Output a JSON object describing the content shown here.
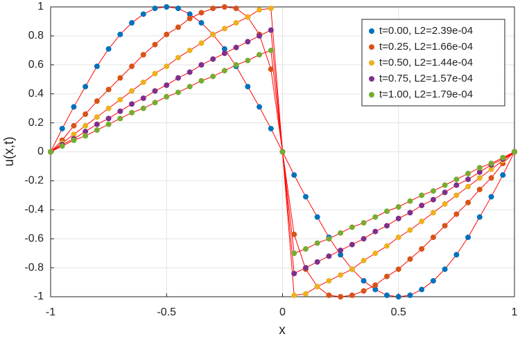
{
  "chart_data": {
    "type": "line",
    "x_label": "x",
    "y_label": "u(x,t)",
    "xlim": [
      -1,
      1
    ],
    "xticks": [
      -1,
      -0.5,
      0,
      0.5,
      1
    ],
    "ylim": [
      -1,
      1
    ],
    "yticks": [
      -1,
      -0.8,
      -0.6,
      -0.4,
      -0.2,
      0,
      0.2,
      0.4,
      0.6,
      0.8,
      1
    ],
    "grid": true,
    "legend": "upper right",
    "line_color": "#ff0000",
    "x": [
      -1,
      -0.95,
      -0.9,
      -0.85,
      -0.8,
      -0.75,
      -0.7,
      -0.65,
      -0.6,
      -0.55,
      -0.5,
      -0.45,
      -0.4,
      -0.35,
      -0.3,
      -0.25,
      -0.2,
      -0.15,
      -0.1,
      -0.05,
      0,
      0.05,
      0.1,
      0.15,
      0.2,
      0.25,
      0.3,
      0.35,
      0.4,
      0.45,
      0.5,
      0.55,
      0.6,
      0.65,
      0.7,
      0.75,
      0.8,
      0.85,
      0.9,
      0.95,
      1
    ],
    "series": [
      {
        "name": "t=0.00, L2=2.39e-04",
        "color": "#0072bd",
        "values": [
          0,
          0.16,
          0.31,
          0.45,
          0.59,
          0.71,
          0.81,
          0.89,
          0.95,
          0.99,
          1,
          0.99,
          0.95,
          0.89,
          0.81,
          0.71,
          0.59,
          0.45,
          0.31,
          0.16,
          0,
          -0.16,
          -0.31,
          -0.45,
          -0.59,
          -0.71,
          -0.81,
          -0.89,
          -0.95,
          -0.99,
          -1,
          -0.99,
          -0.95,
          -0.89,
          -0.81,
          -0.71,
          -0.59,
          -0.45,
          -0.31,
          -0.16,
          0
        ]
      },
      {
        "name": "t=0.25, L2=1.66e-04",
        "color": "#d95319",
        "values": [
          0,
          0.08,
          0.18,
          0.26,
          0.35,
          0.43,
          0.51,
          0.59,
          0.67,
          0.74,
          0.81,
          0.86,
          0.92,
          0.96,
          0.99,
          1,
          0.99,
          0.93,
          0.81,
          0.57,
          0,
          -0.57,
          -0.81,
          -0.93,
          -0.99,
          -1,
          -0.99,
          -0.96,
          -0.92,
          -0.86,
          -0.81,
          -0.74,
          -0.67,
          -0.59,
          -0.51,
          -0.43,
          -0.35,
          -0.26,
          -0.18,
          -0.08,
          0
        ]
      },
      {
        "name": "t=0.50, L2=1.44e-04",
        "color": "#edb120",
        "values": [
          0,
          0.06,
          0.12,
          0.18,
          0.24,
          0.3,
          0.36,
          0.42,
          0.48,
          0.54,
          0.59,
          0.65,
          0.7,
          0.75,
          0.81,
          0.85,
          0.89,
          0.93,
          0.98,
          0.99,
          0,
          -0.99,
          -0.98,
          -0.93,
          -0.89,
          -0.85,
          -0.81,
          -0.75,
          -0.7,
          -0.65,
          -0.59,
          -0.54,
          -0.48,
          -0.42,
          -0.36,
          -0.3,
          -0.24,
          -0.18,
          -0.12,
          -0.06,
          0
        ]
      },
      {
        "name": "t=0.75, L2=1.57e-04",
        "color": "#7e2f8e",
        "values": [
          0,
          0.05,
          0.09,
          0.14,
          0.19,
          0.23,
          0.28,
          0.33,
          0.37,
          0.42,
          0.46,
          0.51,
          0.55,
          0.6,
          0.64,
          0.68,
          0.72,
          0.76,
          0.8,
          0.84,
          0,
          -0.84,
          -0.8,
          -0.76,
          -0.72,
          -0.68,
          -0.64,
          -0.6,
          -0.55,
          -0.51,
          -0.46,
          -0.42,
          -0.37,
          -0.33,
          -0.28,
          -0.23,
          -0.19,
          -0.14,
          -0.09,
          -0.05,
          0
        ]
      },
      {
        "name": "t=1.00, L2=1.79e-04",
        "color": "#77ac30",
        "values": [
          0,
          0.04,
          0.08,
          0.11,
          0.15,
          0.19,
          0.23,
          0.27,
          0.3,
          0.34,
          0.38,
          0.41,
          0.45,
          0.49,
          0.52,
          0.56,
          0.6,
          0.63,
          0.67,
          0.7,
          0,
          -0.7,
          -0.67,
          -0.63,
          -0.6,
          -0.56,
          -0.52,
          -0.49,
          -0.45,
          -0.41,
          -0.38,
          -0.34,
          -0.3,
          -0.27,
          -0.23,
          -0.19,
          -0.15,
          -0.11,
          -0.08,
          -0.04,
          0
        ]
      }
    ]
  }
}
